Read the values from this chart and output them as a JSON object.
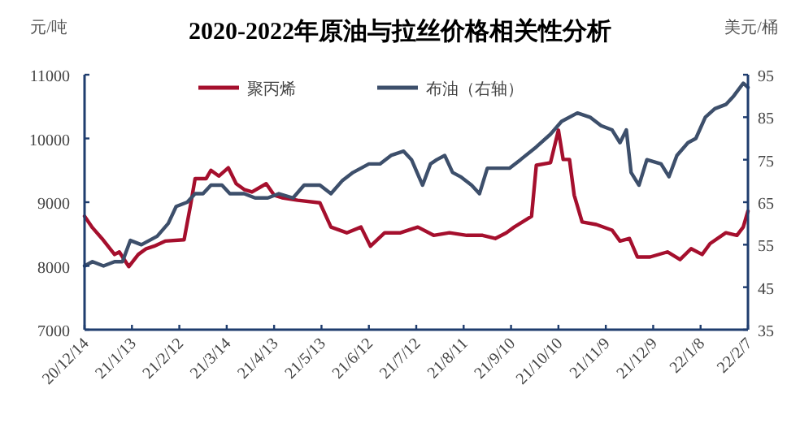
{
  "chart_data": {
    "type": "line",
    "title": "2020-2022年原油与拉丝价格相关性分析",
    "ylabel": "元/吨",
    "y2label": "美元/桶",
    "legend": "top",
    "grid": false,
    "xlim": [
      "2020-12-14",
      "2022-02-07"
    ],
    "xticks": [
      {
        "value": "2020-12-14",
        "label": "20/12/14"
      },
      {
        "value": "2021-01-13",
        "label": "21/1/13"
      },
      {
        "value": "2021-02-12",
        "label": "21/2/12"
      },
      {
        "value": "2021-03-14",
        "label": "21/3/14"
      },
      {
        "value": "2021-04-13",
        "label": "21/4/13"
      },
      {
        "value": "2021-05-13",
        "label": "21/5/13"
      },
      {
        "value": "2021-06-12",
        "label": "21/6/12"
      },
      {
        "value": "2021-07-12",
        "label": "21/7/12"
      },
      {
        "value": "2021-08-11",
        "label": "21/8/11"
      },
      {
        "value": "2021-09-10",
        "label": "21/9/10"
      },
      {
        "value": "2021-10-10",
        "label": "21/10/10"
      },
      {
        "value": "2021-11-09",
        "label": "21/11/9"
      },
      {
        "value": "2021-12-09",
        "label": "21/12/9"
      },
      {
        "value": "2022-01-08",
        "label": "22/1/8"
      },
      {
        "value": "2022-02-07",
        "label": "22/2/7"
      }
    ],
    "ylim": [
      7000,
      11000
    ],
    "yticks": [
      7000,
      8000,
      9000,
      10000,
      11000
    ],
    "y2lim": [
      35,
      95
    ],
    "y2ticks": [
      35,
      45,
      55,
      65,
      75,
      85,
      95
    ],
    "series": [
      {
        "name": "聚丙烯",
        "color": "#a50f2d",
        "x": [
          "2020-12-14",
          "2020-12-19",
          "2020-12-25",
          "2021-01-02",
          "2021-01-05",
          "2021-01-11",
          "2021-01-17",
          "2021-01-22",
          "2021-01-27",
          "2021-02-03",
          "2021-02-15",
          "2021-02-19",
          "2021-02-22",
          "2021-03-01",
          "2021-03-04",
          "2021-03-09",
          "2021-03-15",
          "2021-03-20",
          "2021-03-25",
          "2021-03-30",
          "2021-04-08",
          "2021-04-13",
          "2021-04-18",
          "2021-04-28",
          "2021-05-12",
          "2021-05-19",
          "2021-05-29",
          "2021-06-07",
          "2021-06-13",
          "2021-06-22",
          "2021-07-02",
          "2021-07-13",
          "2021-07-23",
          "2021-08-02",
          "2021-08-13",
          "2021-08-23",
          "2021-08-31",
          "2021-09-07",
          "2021-09-12",
          "2021-09-23",
          "2021-09-26",
          "2021-10-05",
          "2021-10-10",
          "2021-10-13",
          "2021-10-17",
          "2021-10-20",
          "2021-10-25",
          "2021-11-03",
          "2021-11-13",
          "2021-11-18",
          "2021-11-24",
          "2021-11-29",
          "2021-12-07",
          "2021-12-18",
          "2021-12-26",
          "2022-01-02",
          "2022-01-09",
          "2022-01-14",
          "2022-01-24",
          "2022-01-31",
          "2022-02-04",
          "2022-02-07"
        ],
        "values": [
          8780,
          8600,
          8430,
          8180,
          8220,
          7990,
          8180,
          8270,
          8310,
          8390,
          8410,
          8940,
          9370,
          9370,
          9500,
          9410,
          9540,
          9290,
          9200,
          9160,
          9290,
          9110,
          9070,
          9030,
          8990,
          8610,
          8520,
          8610,
          8310,
          8520,
          8520,
          8610,
          8480,
          8520,
          8480,
          8480,
          8430,
          8520,
          8610,
          8780,
          9580,
          9620,
          10130,
          9670,
          9670,
          9110,
          8690,
          8650,
          8560,
          8390,
          8430,
          8140,
          8140,
          8220,
          8100,
          8270,
          8180,
          8350,
          8520,
          8480,
          8610,
          8860
        ]
      },
      {
        "name": "布油（右轴）",
        "color": "#3d4f6b",
        "axis": "y2",
        "x": [
          "2020-12-14",
          "2020-12-19",
          "2020-12-26",
          "2021-01-02",
          "2021-01-07",
          "2021-01-12",
          "2021-01-19",
          "2021-01-29",
          "2021-02-05",
          "2021-02-10",
          "2021-02-17",
          "2021-02-22",
          "2021-02-27",
          "2021-03-04",
          "2021-03-11",
          "2021-03-16",
          "2021-03-25",
          "2021-04-01",
          "2021-04-09",
          "2021-04-16",
          "2021-04-25",
          "2021-05-02",
          "2021-05-12",
          "2021-05-19",
          "2021-05-26",
          "2021-06-02",
          "2021-06-12",
          "2021-06-19",
          "2021-06-26",
          "2021-07-04",
          "2021-07-09",
          "2021-07-16",
          "2021-07-21",
          "2021-07-25",
          "2021-07-30",
          "2021-08-04",
          "2021-08-09",
          "2021-08-16",
          "2021-08-21",
          "2021-08-26",
          "2021-09-02",
          "2021-09-09",
          "2021-09-16",
          "2021-09-26",
          "2021-10-05",
          "2021-10-12",
          "2021-10-22",
          "2021-10-30",
          "2021-11-06",
          "2021-11-13",
          "2021-11-18",
          "2021-11-22",
          "2021-11-25",
          "2021-11-30",
          "2021-12-05",
          "2021-12-14",
          "2021-12-19",
          "2021-12-24",
          "2021-12-31",
          "2022-01-05",
          "2022-01-11",
          "2022-01-17",
          "2022-01-24",
          "2022-01-29",
          "2022-02-04",
          "2022-02-07"
        ],
        "values": [
          50,
          51,
          50,
          51,
          51,
          56,
          55,
          57,
          60,
          64,
          65,
          67,
          67,
          69,
          69,
          67,
          67,
          66,
          66,
          67,
          66,
          69,
          69,
          67,
          70,
          72,
          74,
          74,
          76,
          77,
          75,
          69,
          74,
          75,
          76,
          72,
          71,
          69,
          67,
          73,
          73,
          73,
          75,
          78,
          81,
          84,
          86,
          85,
          83,
          82,
          79,
          82,
          72,
          69,
          75,
          74,
          71,
          76,
          79,
          80,
          85,
          87,
          88,
          90,
          93,
          92
        ]
      }
    ]
  }
}
